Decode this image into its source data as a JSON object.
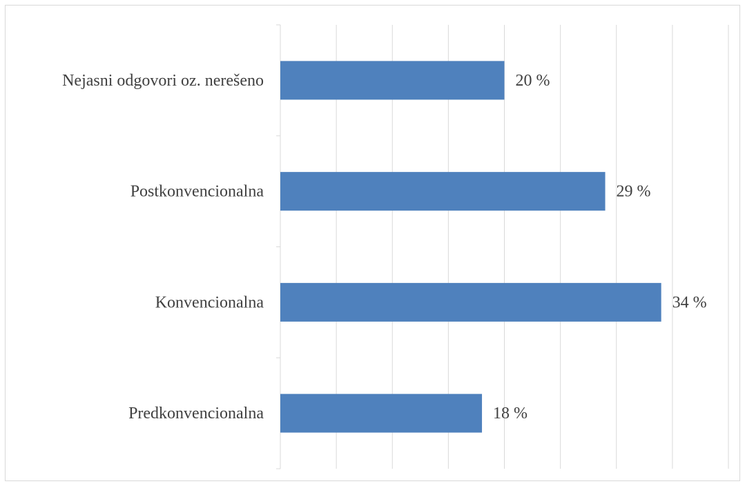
{
  "chart_data": {
    "type": "bar",
    "orientation": "horizontal",
    "categories": [
      "Nejasni odgovori oz. nerešeno",
      "Postkonvencionalna",
      "Konvencionalna",
      "Predkonvencionalna"
    ],
    "values": [
      20,
      29,
      34,
      18
    ],
    "value_labels": [
      "20 %",
      "29 %",
      "34 %",
      "18 %"
    ],
    "color": "#4f81bd",
    "xlim": [
      0,
      40
    ],
    "xticks": [
      0,
      5,
      10,
      15,
      20,
      25,
      30,
      35,
      40
    ],
    "grid": true
  }
}
